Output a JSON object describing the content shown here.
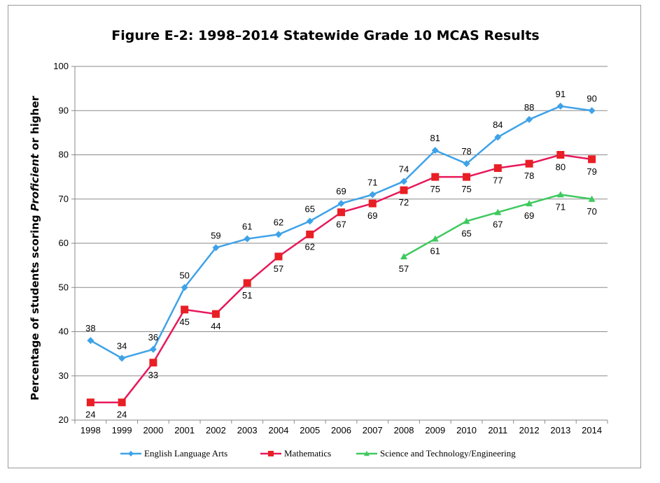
{
  "chart_data": {
    "type": "line",
    "title": "Figure E-2: 1998–2014 Statewide Grade 10 MCAS Results",
    "ylabel_prefix": "Percentage of students scoring ",
    "ylabel_emph": "Proficient",
    "ylabel_suffix": " or higher",
    "xlabel": "",
    "ylim": [
      20,
      100
    ],
    "yticks": [
      20,
      30,
      40,
      50,
      60,
      70,
      80,
      90,
      100
    ],
    "grid": true,
    "legend_position": "bottom",
    "categories": [
      "1998",
      "1999",
      "2000",
      "2001",
      "2002",
      "2003",
      "2004",
      "2005",
      "2006",
      "2007",
      "2008",
      "2009",
      "2010",
      "2011",
      "2012",
      "2013",
      "2014"
    ],
    "series": [
      {
        "name": "English Language Arts",
        "color": "#3fa2e8",
        "marker": "diamond",
        "values": [
          38,
          34,
          36,
          50,
          59,
          61,
          62,
          65,
          69,
          71,
          74,
          81,
          78,
          84,
          88,
          91,
          90
        ],
        "label_position": "above"
      },
      {
        "name": "Mathematics",
        "color": "#e8185a",
        "marker_color": "#e81f24",
        "marker": "square",
        "values": [
          24,
          24,
          33,
          45,
          44,
          51,
          57,
          62,
          67,
          69,
          72,
          75,
          75,
          77,
          78,
          80,
          79
        ],
        "label_position": "below"
      },
      {
        "name": "Science and Technology/Engineering",
        "color": "#3ec95f",
        "marker": "triangle",
        "values": [
          null,
          null,
          null,
          null,
          null,
          null,
          null,
          null,
          null,
          null,
          57,
          61,
          65,
          67,
          69,
          71,
          70
        ],
        "label_position": "below"
      }
    ]
  }
}
